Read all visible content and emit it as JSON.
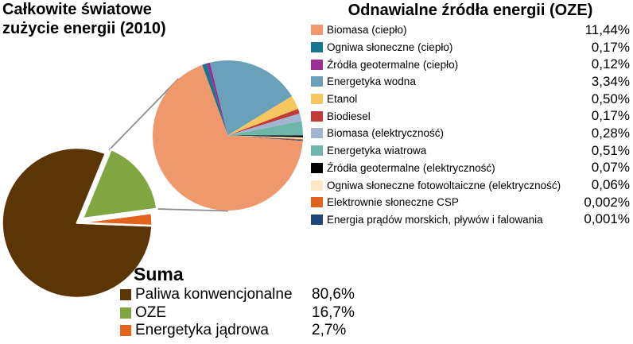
{
  "titles": {
    "main": "Całkowite światowe\nzużycie energii (2010)"
  },
  "connector_color": "#8a8a8a",
  "chart_data": [
    {
      "type": "pie",
      "title": "Całkowite światowe zużycie energii (2010)",
      "legend_title": "Suma",
      "legend_position": "bottom-left",
      "categories": [
        "Paliwa konwencjonalne",
        "OZE",
        "Energetyka jądrowa"
      ],
      "values": [
        80.6,
        16.7,
        2.7
      ],
      "value_labels": [
        "80,6%",
        "16,7%",
        "2,7%"
      ],
      "colors": [
        "#5C3507",
        "#7FA640",
        "#E4631D"
      ],
      "exploded_slice": "OZE"
    },
    {
      "type": "pie",
      "title": "Odnawialne źródła energii (OZE)",
      "legend_position": "right",
      "categories": [
        "Biomasa (ciepło)",
        "Ogniwa słoneczne (ciepło)",
        "Źródła geotermalne (ciepło)",
        "Energetyka wodna",
        "Etanol",
        "Biodiesel",
        "Biomasa (elektryczność)",
        "Energetyka wiatrowa",
        "Źródła geotermalne (elektryczność)",
        "Ogniwa słoneczne fotowoltaiczne (elektryczność)",
        "Elektrownie słoneczne CSP",
        "Energia prądów morskich, pływów i falowania"
      ],
      "values": [
        11.44,
        0.17,
        0.12,
        3.34,
        0.5,
        0.17,
        0.28,
        0.51,
        0.07,
        0.06,
        0.002,
        0.001
      ],
      "value_labels": [
        "11,44%",
        "0,17%",
        "0,12%",
        "3,34%",
        "0,50%",
        "0,17%",
        "0,28%",
        "0,51%",
        "0,07%",
        "0,06%",
        "0,002%",
        "0,001%"
      ],
      "colors": [
        "#EF986C",
        "#17768C",
        "#992E93",
        "#6AA0BA",
        "#F6C75F",
        "#C23A36",
        "#A2B4CF",
        "#6EB6AA",
        "#000000",
        "#FBE9C5",
        "#E2611C",
        "#20457A"
      ]
    }
  ]
}
